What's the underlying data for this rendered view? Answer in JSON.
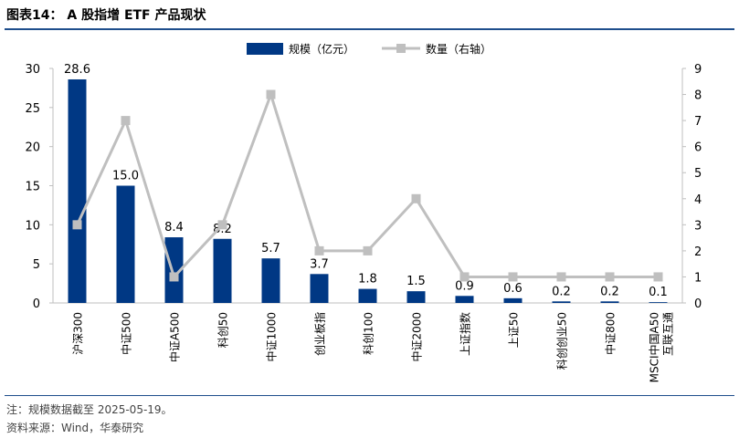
{
  "header": {
    "title": "图表14：  A 股指增 ETF 产品现状"
  },
  "footer": {
    "note": "注：规模数据截至 2025-05-19。",
    "source": "资料来源：Wind，华泰研究"
  },
  "colors": {
    "bar": "#003884",
    "line": "#bfbfbf",
    "rule": "#1e4e8c",
    "axis": "#bfbfbf"
  },
  "chart_data": {
    "type": "bar",
    "categories": [
      "沪深300",
      "中证500",
      "中证A500",
      "科创50",
      "中证1000",
      "创业板指",
      "科创100",
      "中证2000",
      "上证指数",
      "上证50",
      "科创创业50",
      "中证800",
      "MSCI中国A50互联互通"
    ],
    "series": [
      {
        "name": "规模（亿元）",
        "type": "bar",
        "axis": "left",
        "values": [
          28.6,
          15.0,
          8.4,
          8.2,
          5.7,
          3.7,
          1.8,
          1.5,
          0.9,
          0.6,
          0.2,
          0.2,
          0.1
        ],
        "labels": [
          "28.6",
          "15.0",
          "8.4",
          "8.2",
          "5.7",
          "3.7",
          "1.8",
          "1.5",
          "0.9",
          "0.6",
          "0.2",
          "0.2",
          "0.1"
        ]
      },
      {
        "name": "数量（右轴）",
        "type": "line",
        "axis": "right",
        "values": [
          3,
          7,
          1,
          3,
          8,
          2,
          2,
          4,
          1,
          1,
          1,
          1,
          1
        ]
      }
    ],
    "y_left": {
      "min": 0,
      "max": 30,
      "ticks": [
        "0",
        "5",
        "10",
        "15",
        "20",
        "25",
        "30"
      ]
    },
    "y_right": {
      "min": 0,
      "max": 9,
      "ticks": [
        "0",
        "1",
        "2",
        "3",
        "4",
        "5",
        "6",
        "7",
        "8",
        "9"
      ]
    },
    "legend_position": "top-center",
    "grid": false
  }
}
